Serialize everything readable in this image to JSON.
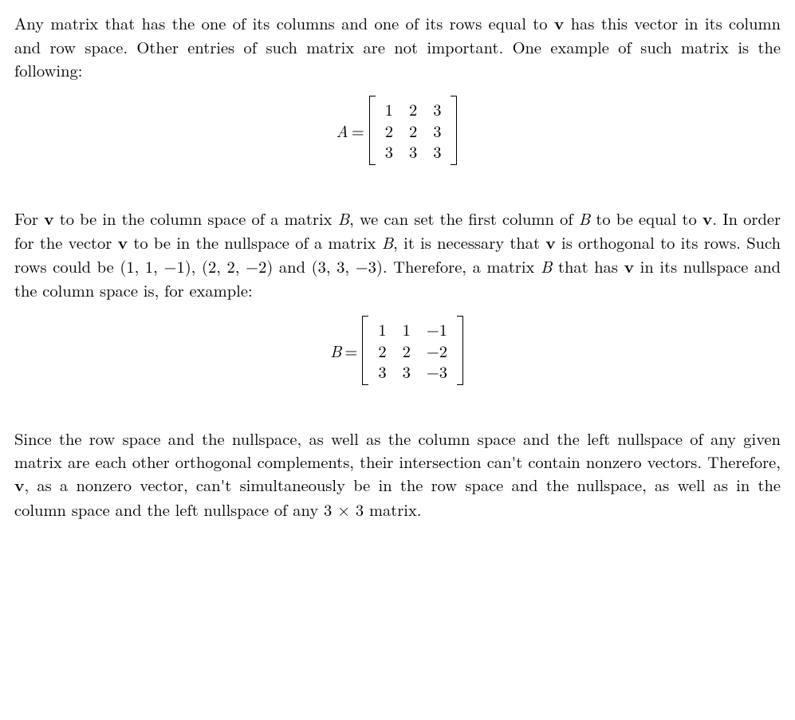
{
  "para1": {
    "t1": "Any matrix that has the one of its columns and one of its rows equal to ",
    "v": "v",
    "t2": " has this vector in its column and row space. Other entries of such matrix are not important. One example of such matrix is the following:"
  },
  "eqA": {
    "lhs_var": "A",
    "eq": " = ",
    "rows": [
      [
        "1",
        "2",
        "3"
      ],
      [
        "2",
        "2",
        "3"
      ],
      [
        "3",
        "3",
        "3"
      ]
    ]
  },
  "para2": {
    "t1": "For ",
    "v": "v",
    "t2": " to be in the column space of a matrix ",
    "B1": "B",
    "t3": ", we can set the first column of ",
    "B2": "B",
    "t4": " to be equal to ",
    "t5": ". In order for the vector ",
    "t6": " to be in the nullspace of a matrix ",
    "B3": "B",
    "t7": ", it is necessary that ",
    "t8": " is orthogonal to its rows. Such rows could be ",
    "trip1": "(1, 1, −1)",
    "c1": ", ",
    "trip2": "(2, 2, −2)",
    "and": " and ",
    "trip3": "(3, 3, −3)",
    "t9": ". Therefore, a matrix ",
    "B4": "B",
    "t10": " that has ",
    "t11": " in its nullspace and the column space is, for example:"
  },
  "eqB": {
    "lhs_var": "B",
    "eq": " = ",
    "rows": [
      [
        "1",
        "1",
        "−1"
      ],
      [
        "2",
        "2",
        "−2"
      ],
      [
        "3",
        "3",
        "−3"
      ]
    ]
  },
  "para3": {
    "t1": "Since the row space and the nullspace, as well as the column space and the left nullspace of any given matrix are each other orthogonal complements, their intersection can't contain nonzero vectors. Therefore, ",
    "v": "v",
    "t2": ", as a nonzero vector, can't simultaneously be in the row space and the nullspace, as well as in the column space and the left nullspace of any ",
    "dim": "3 × 3",
    "t3": " matrix."
  },
  "style": {
    "text_color": "#000000",
    "background": "#ffffff",
    "font_size_pt": 15,
    "matrix_bracket_color": "#000000"
  }
}
